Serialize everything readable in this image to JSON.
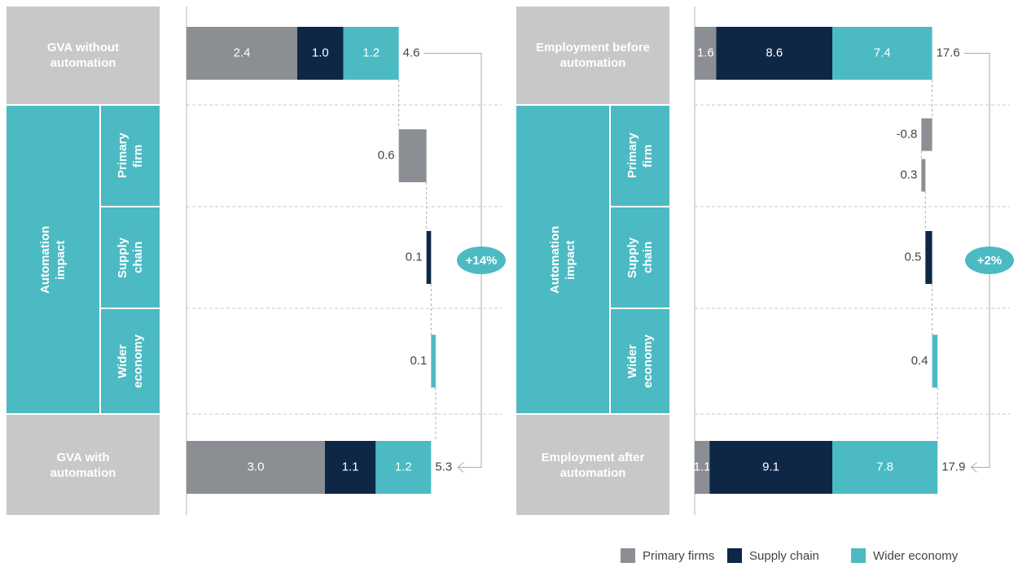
{
  "chart_data": [
    {
      "type": "waterfall",
      "xlim": [
        0,
        6.9
      ],
      "start": {
        "label": "GVA without automation",
        "values": [
          2.4,
          1.0,
          1.2
        ],
        "value_labels": [
          "2.4",
          "1.0",
          "1.2"
        ],
        "total": 4.6
      },
      "group_label": "Automation impact",
      "steps": [
        {
          "label": "Primary firm",
          "values": [
            0.6
          ]
        },
        {
          "label": "Supply chain",
          "values": [
            0.1
          ]
        },
        {
          "label": "Wider economy",
          "values": [
            0.1
          ]
        }
      ],
      "end": {
        "label": "GVA with automation",
        "values": [
          3.0,
          1.1,
          1.2
        ],
        "value_labels": [
          "3.0",
          "1.1",
          "1.2"
        ],
        "total": 5.3
      },
      "change": "+14%"
    },
    {
      "type": "waterfall",
      "xlim": [
        0,
        23.6
      ],
      "start": {
        "label": "Employment before automation",
        "values": [
          1.6,
          8.6,
          7.4
        ],
        "value_labels": [
          "1.6",
          "8.6",
          "7.4"
        ],
        "total": 17.6
      },
      "group_label": "Automation impact",
      "steps": [
        {
          "label": "Primary firm",
          "values": [
            -0.8,
            0.3
          ]
        },
        {
          "label": "Supply chain",
          "values": [
            0.5
          ]
        },
        {
          "label": "Wider economy",
          "values": [
            0.4
          ]
        }
      ],
      "end": {
        "label": "Employment after automation",
        "values": [
          1.1,
          9.1,
          7.8
        ],
        "value_labels": [
          "1.1",
          "9.1",
          "7.8"
        ],
        "total": 17.9
      },
      "change": "+2%"
    }
  ],
  "legend": {
    "series": [
      {
        "name": "Primary firms",
        "color": "#8b8e92"
      },
      {
        "name": "Supply chain",
        "color": "#0e2747"
      },
      {
        "name": "Wider economy",
        "color": "#4cbac3"
      }
    ]
  }
}
